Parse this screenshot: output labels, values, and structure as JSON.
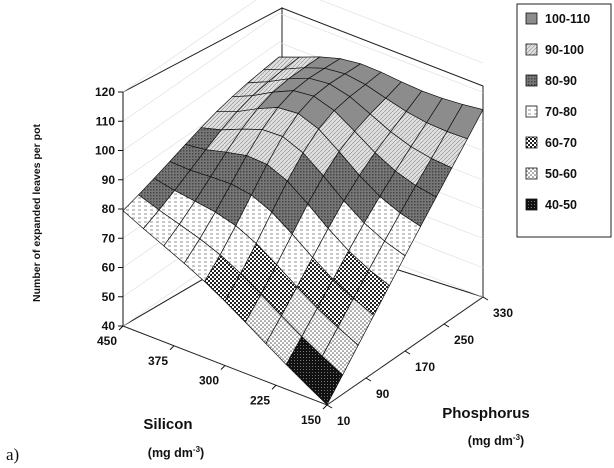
{
  "panel_label": "a)",
  "chart_data": {
    "type": "surface",
    "title": "",
    "zlabel": "Number of expanded leaves per pot",
    "xlabel": "Silicon",
    "xunit": "(mg dm",
    "xunit_sup": "-3",
    "xunit_end": ")",
    "ylabel": "Phosphorus",
    "yunit": "(mg dm",
    "yunit_sup": "-3",
    "yunit_end": ")",
    "z_ticks": [
      "40",
      "50",
      "60",
      "70",
      "80",
      "90",
      "100",
      "110",
      "120"
    ],
    "zlim": [
      40,
      120
    ],
    "silicon_ticks": [
      "450",
      "375",
      "300",
      "225",
      "150"
    ],
    "phosphorus_ticks": [
      "10",
      "90",
      "170",
      "250",
      "330"
    ],
    "legend": [
      {
        "label": "100-110",
        "color": "#8c8c8c"
      },
      {
        "label": "90-100",
        "color": "#d8d8d8"
      },
      {
        "label": "80-90",
        "color": "#6e6e6e"
      },
      {
        "label": "70-80",
        "color": "#f4f4f4"
      },
      {
        "label": "60-70",
        "color": "#4a4a4a"
      },
      {
        "label": "50-60",
        "color": "#bdbdbd"
      },
      {
        "label": "40-50",
        "color": "#111111"
      }
    ],
    "corner_values": {
      "si450_p10": 79,
      "si150_p10": 40,
      "si450_p330": 93,
      "si150_p330": 104,
      "peak": 110
    }
  }
}
